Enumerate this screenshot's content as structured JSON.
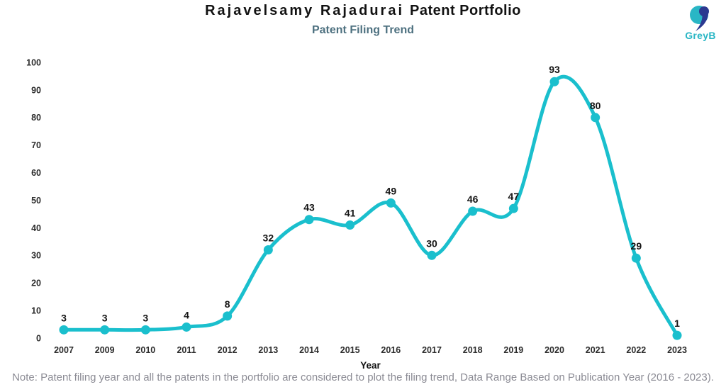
{
  "header": {
    "title_name": "Rajavelsamy Rajadurai",
    "title_suffix": "Patent Portfolio",
    "subtitle": "Patent Filing Trend"
  },
  "logo": {
    "text": "GreyB",
    "teal": "#29b6c5",
    "navy": "#2b3990"
  },
  "chart_data": {
    "type": "line",
    "title": "Patent Filing Trend",
    "categories": [
      "2007",
      "2009",
      "2010",
      "2011",
      "2012",
      "2013",
      "2014",
      "2015",
      "2016",
      "2017",
      "2018",
      "2019",
      "2020",
      "2021",
      "2022",
      "2023"
    ],
    "values": [
      3,
      3,
      3,
      4,
      8,
      32,
      43,
      41,
      49,
      30,
      46,
      47,
      93,
      80,
      29,
      1
    ],
    "xlabel": "Year",
    "ylabel": "",
    "ylim": [
      0,
      100
    ],
    "yticks": [
      0,
      10,
      20,
      30,
      40,
      50,
      60,
      70,
      80,
      90,
      100
    ],
    "grid": false,
    "legend": "none",
    "smooth": true,
    "data_labels": true,
    "line_color": "#1abfcd",
    "marker_color": "#1abfcd",
    "label_color": "#141414",
    "tick_color": "#2d2d2d"
  },
  "footer": {
    "note": "Note: Patent filing year and all the patents in the portfolio are considered to plot the filing trend, Data Range Based on Publication Year (2016 - 2023)."
  }
}
